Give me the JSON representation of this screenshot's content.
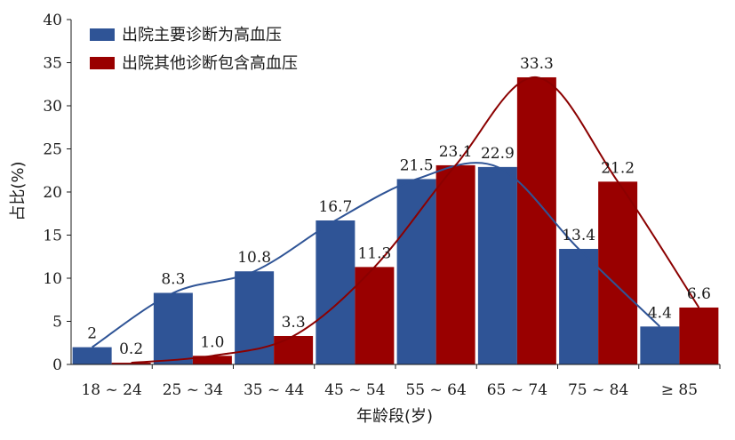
{
  "chart_data": {
    "type": "bar",
    "title": "",
    "xlabel": "年龄段(岁)",
    "ylabel": "占比(%)",
    "ylim": [
      0,
      40
    ],
    "yticks": [
      0,
      5,
      10,
      15,
      20,
      25,
      30,
      35,
      40
    ],
    "grid": false,
    "legend_position": "top-left",
    "categories": [
      "18 ~ 24",
      "25 ~ 34",
      "35 ~ 44",
      "45 ~ 54",
      "55 ~ 64",
      "65 ~ 74",
      "75 ~ 84",
      "≥ 85"
    ],
    "series": [
      {
        "name": "出院主要诊断为高血压",
        "color": "#2f5496",
        "values": [
          2,
          8.3,
          10.8,
          16.7,
          21.5,
          22.9,
          13.4,
          4.4
        ],
        "labels": [
          "2",
          "8.3",
          "10.8",
          "16.7",
          "21.5",
          "22.9",
          "13.4",
          "4.4"
        ]
      },
      {
        "name": "出院其他诊断包含高血压",
        "color": "#990000",
        "values": [
          0.2,
          1.0,
          3.3,
          11.3,
          23.1,
          33.3,
          21.2,
          6.6
        ],
        "labels": [
          "0.2",
          "1.0",
          "3.3",
          "11.3",
          "23.1",
          "33.3",
          "21.2",
          "6.6"
        ]
      }
    ],
    "trend_lines": true
  }
}
